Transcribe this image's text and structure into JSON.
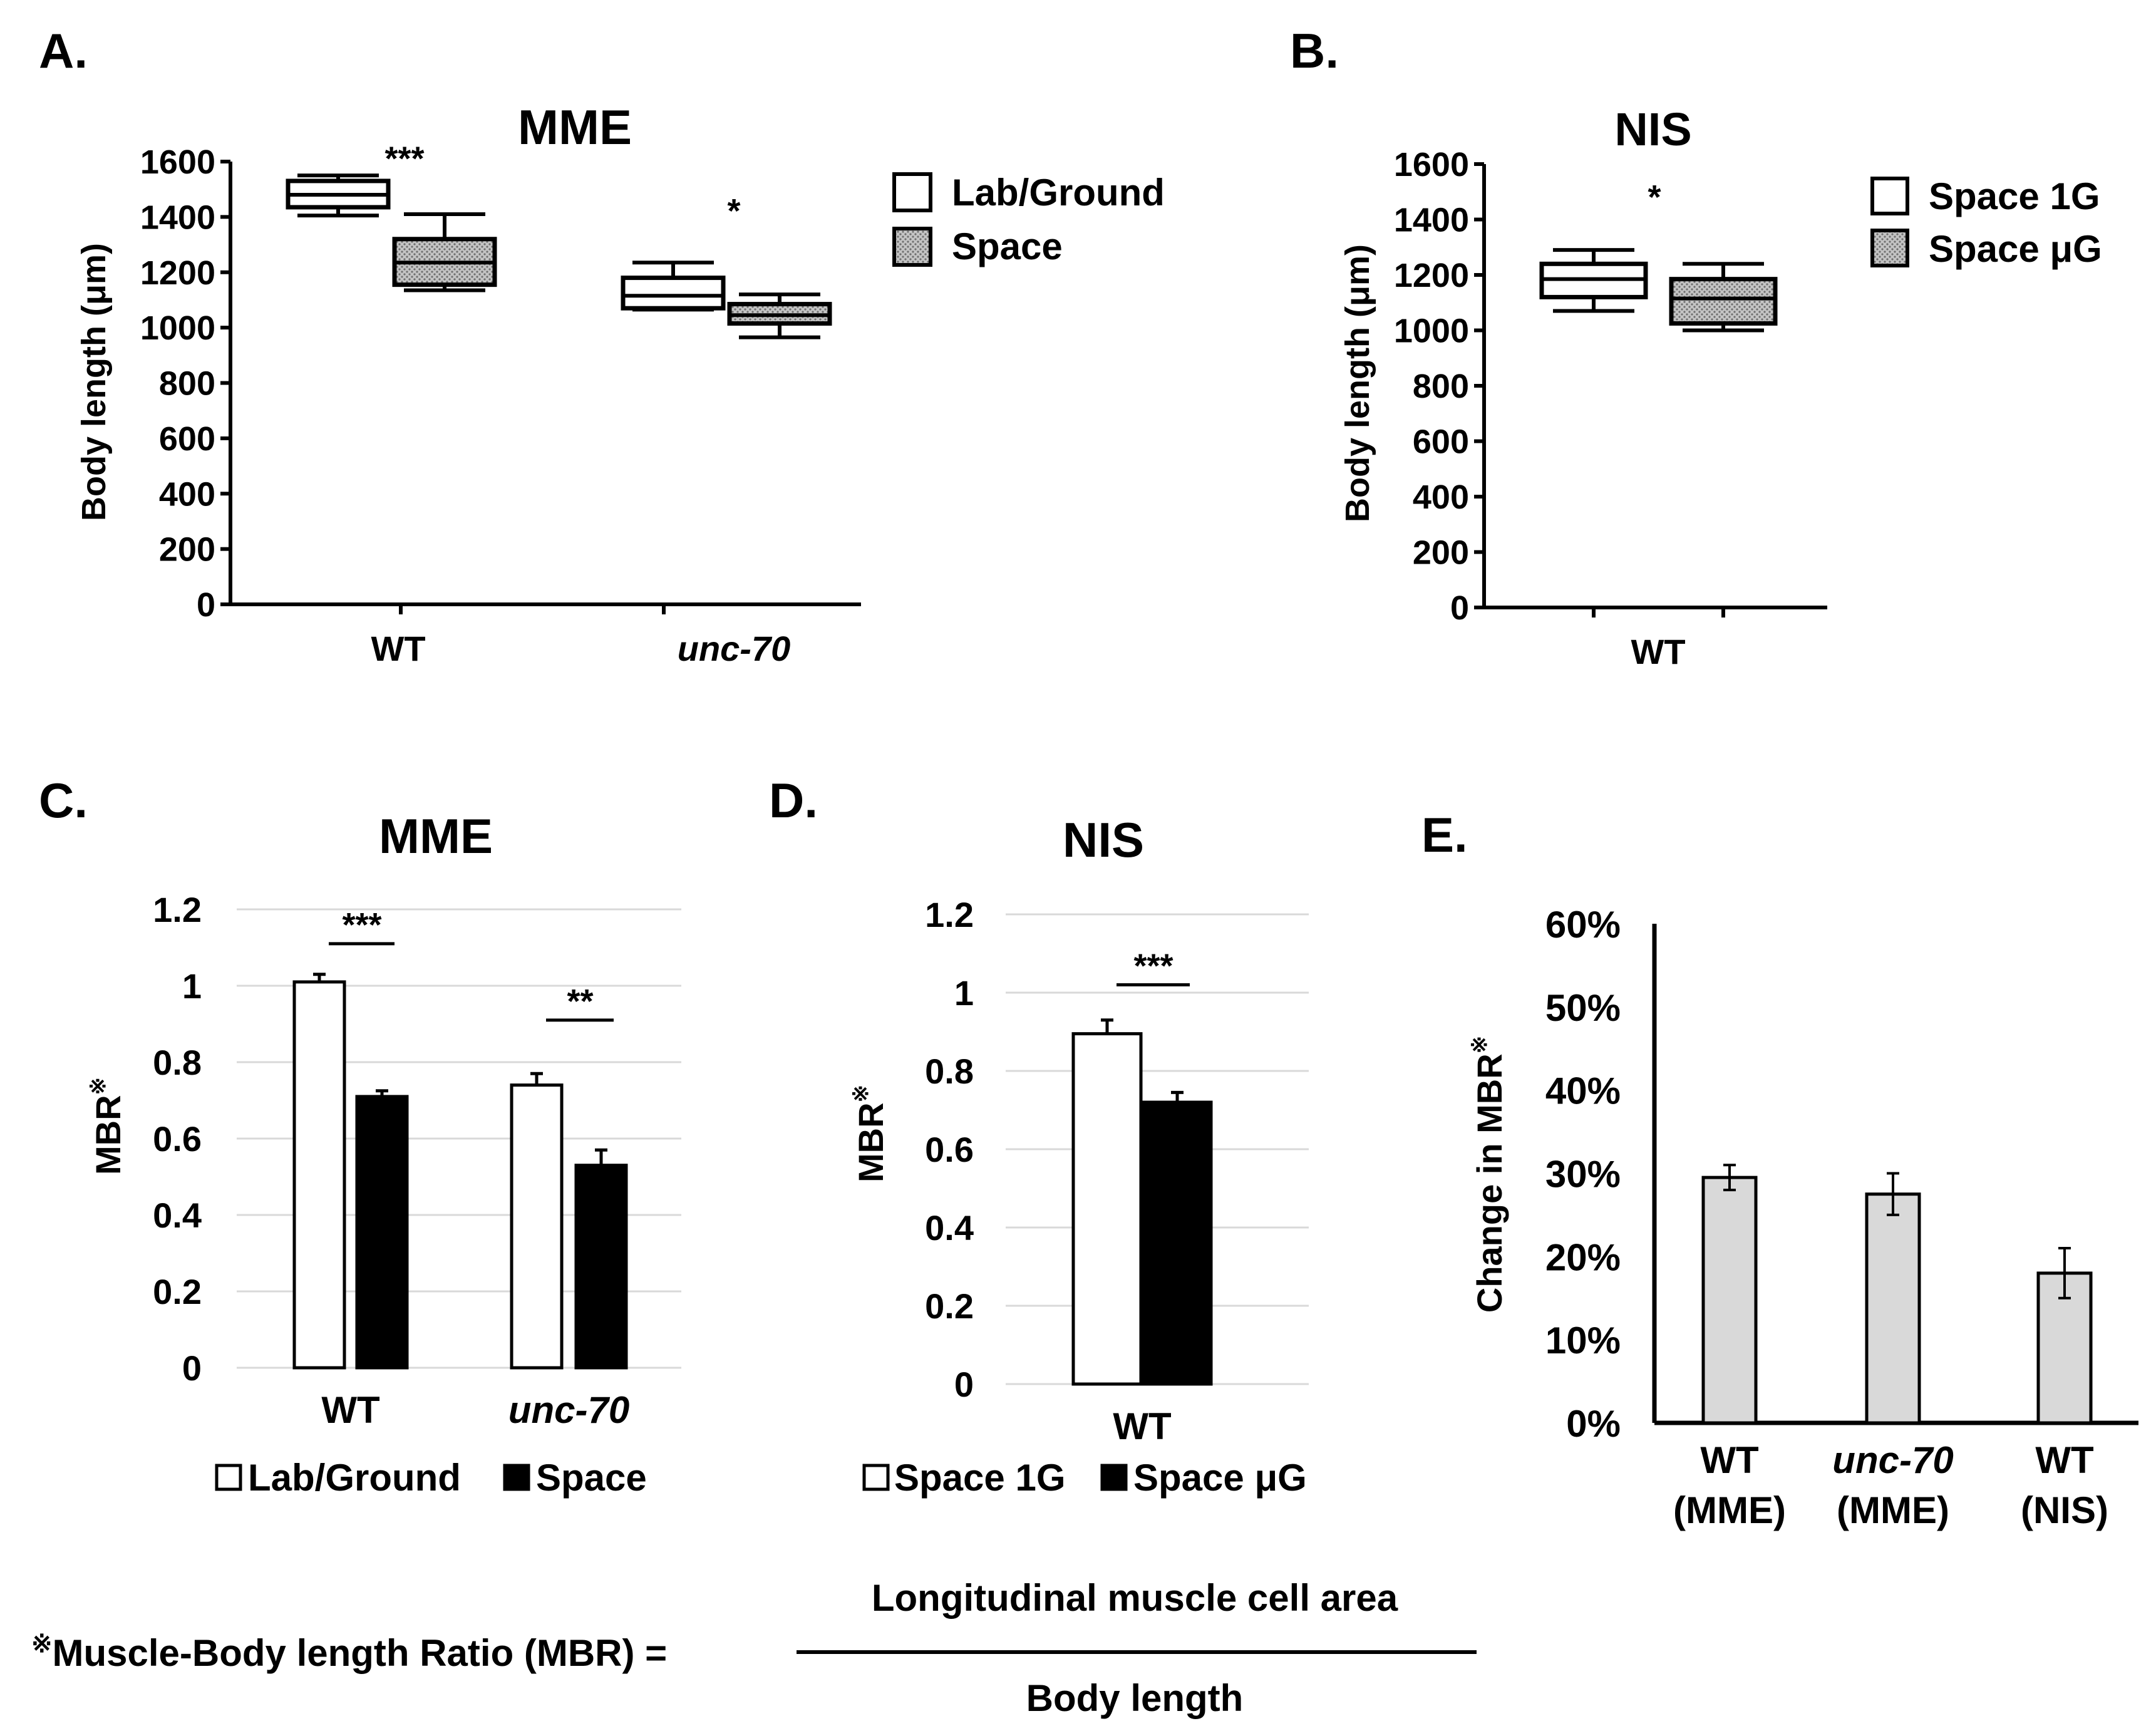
{
  "colors": {
    "ink": "#000000",
    "grid": "#d9d9d9",
    "hatch_fill": "#bdbdbd",
    "gray_bar": "#d9d9d9"
  },
  "footnote": {
    "mark": "※",
    "lhs": "Muscle-Body length Ratio (MBR) =",
    "numerator": "Longitudinal muscle cell area",
    "denominator": "Body length"
  },
  "chart_data": [
    {
      "panel": "A.",
      "type": "box",
      "title": "MME",
      "ylabel": "Body length (μm)",
      "ylim": [
        0,
        1600
      ],
      "yticks": [
        0,
        200,
        400,
        600,
        800,
        1000,
        1200,
        1400,
        1600
      ],
      "groups": [
        {
          "label": "WT",
          "italic": false,
          "sig": "***",
          "boxes": [
            {
              "series": "Lab/Ground",
              "min": 1405,
              "q1": 1435,
              "median": 1480,
              "q3": 1530,
              "max": 1550
            },
            {
              "series": "Space",
              "min": 1135,
              "q1": 1155,
              "median": 1235,
              "q3": 1320,
              "max": 1410
            }
          ]
        },
        {
          "label": "unc-70",
          "italic": true,
          "sig": "*",
          "boxes": [
            {
              "series": "Lab/Ground",
              "min": 1065,
              "q1": 1070,
              "median": 1115,
              "q3": 1180,
              "max": 1235
            },
            {
              "series": "Space",
              "min": 965,
              "q1": 1015,
              "median": 1045,
              "q3": 1085,
              "max": 1120
            }
          ]
        }
      ],
      "legend": [
        "Lab/Ground",
        "Space"
      ]
    },
    {
      "panel": "B.",
      "type": "box",
      "title": "NIS",
      "ylabel": "Body length (μm)",
      "ylim": [
        0,
        1600
      ],
      "yticks": [
        0,
        200,
        400,
        600,
        800,
        1000,
        1200,
        1400,
        1600
      ],
      "groups": [
        {
          "label": "WT",
          "italic": false,
          "sig": "*",
          "boxes": [
            {
              "series": "Space 1G",
              "min": 1070,
              "q1": 1120,
              "median": 1185,
              "q3": 1240,
              "max": 1290
            },
            {
              "series": "Space μG",
              "min": 1000,
              "q1": 1025,
              "median": 1115,
              "q3": 1185,
              "max": 1240
            }
          ]
        }
      ],
      "legend": [
        "Space 1G",
        "Space μG"
      ]
    },
    {
      "panel": "C.",
      "type": "bar",
      "title": "MME",
      "ylabel": "MBR",
      "ylabel_mark": "※",
      "ylim": [
        0,
        1.2
      ],
      "yticks": [
        "0",
        "0.2",
        "0.4",
        "0.6",
        "0.8",
        "1",
        "1.2"
      ],
      "categories": [
        "WT",
        "unc-70"
      ],
      "italic": [
        false,
        true
      ],
      "series": [
        {
          "name": "Lab/Ground",
          "values": [
            1.01,
            0.74
          ],
          "errors": [
            0.02,
            0.03
          ]
        },
        {
          "name": "Space",
          "values": [
            0.71,
            0.53
          ],
          "errors": [
            0.015,
            0.04
          ]
        }
      ],
      "sig": [
        "***",
        "**"
      ],
      "sig_levels": [
        1.11,
        0.91
      ],
      "legend": [
        "Lab/Ground",
        "Space"
      ]
    },
    {
      "panel": "D.",
      "type": "bar",
      "title": "NIS",
      "ylabel": "MBR",
      "ylabel_mark": "※",
      "ylim": [
        0,
        1.2
      ],
      "yticks": [
        "0",
        "0.2",
        "0.4",
        "0.6",
        "0.8",
        "1",
        "1.2"
      ],
      "categories": [
        "WT"
      ],
      "italic": [
        false
      ],
      "series": [
        {
          "name": "Space 1G",
          "values": [
            0.895
          ],
          "errors": [
            0.035
          ]
        },
        {
          "name": "Space μG",
          "values": [
            0.72
          ],
          "errors": [
            0.025
          ]
        }
      ],
      "sig": [
        "***"
      ],
      "sig_levels": [
        1.02
      ],
      "legend": [
        "Space 1G",
        "Space μG"
      ]
    },
    {
      "panel": "E.",
      "type": "bar",
      "title": "",
      "ylabel": "Change in MBR",
      "ylabel_mark": "※",
      "ylim": [
        0,
        60
      ],
      "yticks": [
        "0%",
        "10%",
        "20%",
        "30%",
        "40%",
        "50%",
        "60%"
      ],
      "categories": [
        {
          "line1": "WT",
          "line2": "(MME)",
          "italic": false
        },
        {
          "line1": "unc-70",
          "line2": "(MME)",
          "italic": true
        },
        {
          "line1": "WT",
          "line2": "(NIS)",
          "italic": false
        }
      ],
      "values": [
        29.5,
        27.5,
        18.0
      ],
      "errors": [
        1.5,
        2.5,
        3.0
      ]
    }
  ]
}
